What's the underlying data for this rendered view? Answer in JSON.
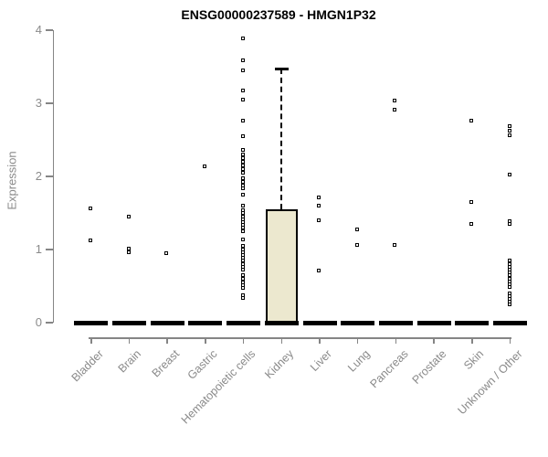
{
  "title": "ENSG00000237589 - HMGN1P32",
  "colors": {
    "box_fill": "#ece8cf",
    "box_border": "#000000",
    "median": "#000000",
    "point": "#000000",
    "axis": "#858585",
    "label_text": "#8a8a8a",
    "title_text": "#000000"
  },
  "chart_data": {
    "type": "boxplot",
    "title": "ENSG00000237589 - HMGN1P32",
    "xlabel": "",
    "ylabel": "Expression",
    "ylim": [
      0,
      4
    ],
    "y_ticks": [
      0,
      1,
      2,
      3,
      4
    ],
    "grid": false,
    "legend": "none",
    "categories": [
      "Bladder",
      "Brain",
      "Breast",
      "Gastric",
      "Hematopoietic cells",
      "Kidney",
      "Liver",
      "Lung",
      "Pancreas",
      "Prostate",
      "Skin",
      "Unknown / Other"
    ],
    "series": [
      {
        "category": "Bladder",
        "median": 0,
        "points": [
          1.56,
          1.12
        ]
      },
      {
        "category": "Brain",
        "median": 0,
        "points": [
          1.44,
          1.01,
          0.96
        ]
      },
      {
        "category": "Breast",
        "median": 0,
        "points": [
          0.95
        ]
      },
      {
        "category": "Gastric",
        "median": 0,
        "points": [
          2.13
        ]
      },
      {
        "category": "Hematopoietic cells",
        "median": 0,
        "points": [
          3.88,
          3.58,
          3.44,
          3.17,
          3.05,
          2.76,
          2.55,
          2.36,
          2.29,
          2.24,
          2.19,
          2.14,
          2.09,
          2.04,
          1.97,
          1.92,
          1.87,
          1.83,
          1.75,
          1.6,
          1.53,
          1.49,
          1.45,
          1.41,
          1.37,
          1.33,
          1.29,
          1.25,
          1.13,
          1.04,
          1.0,
          0.96,
          0.92,
          0.88,
          0.84,
          0.8,
          0.76,
          0.72,
          0.65,
          0.59,
          0.55,
          0.51,
          0.47,
          0.37,
          0.33
        ]
      },
      {
        "category": "Kidney",
        "median": 0,
        "box": {
          "q1": 0,
          "q3": 1.55,
          "upper_whisker": 3.47
        },
        "points": []
      },
      {
        "category": "Liver",
        "median": 0,
        "points": [
          1.71,
          1.6,
          1.39,
          0.71
        ]
      },
      {
        "category": "Lung",
        "median": 0,
        "points": [
          1.27,
          1.06
        ]
      },
      {
        "category": "Pancreas",
        "median": 0,
        "points": [
          3.03,
          2.91,
          1.06
        ]
      },
      {
        "category": "Prostate",
        "median": 0,
        "points": []
      },
      {
        "category": "Skin",
        "median": 0,
        "points": [
          2.76,
          1.64,
          1.34
        ]
      },
      {
        "category": "Unknown / Other",
        "median": 0,
        "points": [
          2.68,
          2.62,
          2.56,
          2.02,
          1.38,
          1.34,
          0.84,
          0.8,
          0.76,
          0.72,
          0.68,
          0.64,
          0.6,
          0.56,
          0.52,
          0.48,
          0.4,
          0.36,
          0.32,
          0.28,
          0.24
        ]
      }
    ]
  }
}
